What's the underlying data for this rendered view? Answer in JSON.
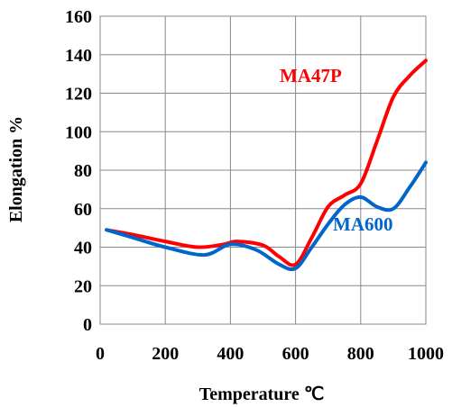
{
  "chart_data": {
    "type": "line",
    "xlabel": "Temperature  ℃",
    "ylabel": "Elongation   %",
    "xlim": [
      0,
      1000
    ],
    "ylim": [
      0,
      160
    ],
    "x_ticks": [
      "0",
      "200",
      "400",
      "600",
      "800",
      "1000"
    ],
    "y_ticks": [
      "0",
      "20",
      "40",
      "60",
      "80",
      "100",
      "120",
      "140",
      "160"
    ],
    "grid": true,
    "series": [
      {
        "name": "MA47P",
        "color": "#ff0000",
        "x": [
          20,
          100,
          200,
          300,
          380,
          420,
          500,
          550,
          600,
          650,
          700,
          750,
          800,
          850,
          900,
          950,
          1000
        ],
        "y": [
          49,
          46.5,
          43,
          40,
          41.5,
          43,
          41,
          35,
          31,
          45,
          61,
          67,
          73,
          95,
          118,
          129,
          137
        ]
      },
      {
        "name": "MA600",
        "color": "#0066cc",
        "x": [
          20,
          100,
          200,
          320,
          400,
          480,
          550,
          600,
          650,
          700,
          750,
          800,
          850,
          900,
          950,
          1000
        ],
        "y": [
          49,
          45,
          40,
          36,
          41.5,
          38.5,
          31,
          29,
          40,
          52,
          62,
          66,
          61,
          60,
          71,
          84
        ]
      }
    ]
  }
}
